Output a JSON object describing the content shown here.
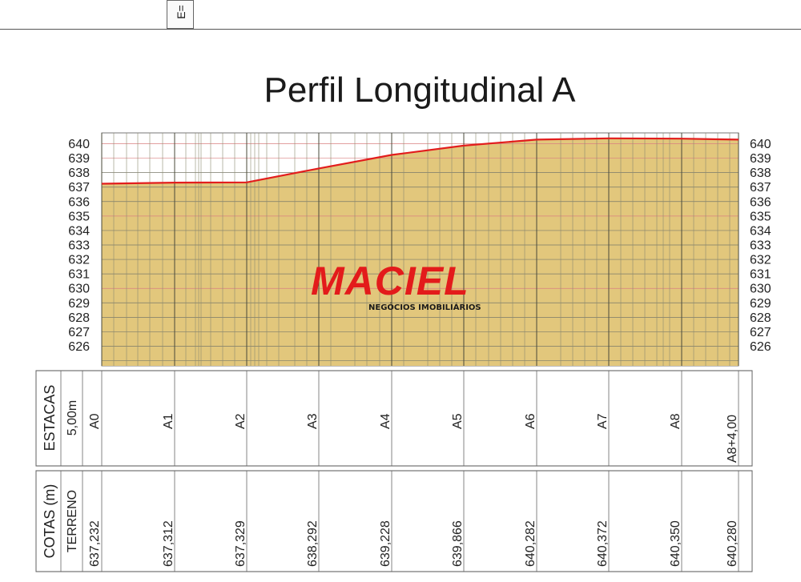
{
  "header": {
    "corner_label": "E="
  },
  "chart_data": {
    "type": "area",
    "title": "Perfil Longitudinal A",
    "ylim": [
      625,
      641
    ],
    "y_ticks": [
      "640",
      "639",
      "638",
      "637",
      "636",
      "635",
      "634",
      "633",
      "632",
      "631",
      "630",
      "629",
      "628",
      "627",
      "626"
    ],
    "x": [
      "A0",
      "A1",
      "A2",
      "A3",
      "A4",
      "A5",
      "A6",
      "A7",
      "A8",
      "A8+4,00"
    ],
    "series": [
      {
        "values": [
          637.232,
          637.312,
          637.329,
          638.292,
          639.228,
          639.866,
          640.282,
          640.372,
          640.35,
          640.28
        ]
      }
    ],
    "table": {
      "row1_label": "ESTACAS",
      "row1_sub": "5,00m",
      "row2_label": "COTAS (m)",
      "row2_sub": "TERRENO",
      "cotas": [
        "637,232",
        "637,312",
        "637,329",
        "638,292",
        "639,228",
        "639,866",
        "640,282",
        "640,372",
        "640,350",
        "640,280"
      ]
    },
    "colors": {
      "fill": "#e2c77c",
      "line": "#e21d1d",
      "grid": "#555555"
    }
  },
  "logo": {
    "word": "MACIEL",
    "sub": "NEGÓCIOS IMOBILIÁRIOS"
  }
}
